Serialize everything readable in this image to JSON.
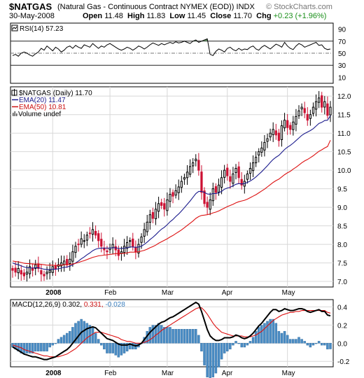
{
  "header": {
    "symbol": "$NATGAS",
    "name": "(Natural Gas - Continuous Contract NYMEX (EOD)) INDX",
    "date": "30-May-2008",
    "open_label": "Open",
    "open": "11.48",
    "high_label": "High",
    "high": "11.83",
    "low_label": "Low",
    "low": "11.45",
    "close_label": "Close",
    "close": "11.70",
    "chg_label": "Chg",
    "chg": "+0.23 (+1.96%)",
    "watermark": "© StockCharts.com"
  },
  "chart_data": [
    {
      "type": "line",
      "panel": "rsi",
      "legend": "RSI(14) 57.23",
      "y_ticks": [
        10,
        30,
        50,
        70,
        90
      ],
      "reference_lines": [
        30,
        50,
        70
      ],
      "ylim": [
        0,
        100
      ],
      "overbought_fill_color": "#5d8a5d",
      "series": [
        {
          "values": [
            46,
            48,
            45,
            50,
            52,
            50,
            47,
            45,
            49,
            52,
            58,
            55,
            62,
            58,
            54,
            60,
            57,
            52,
            55,
            60,
            62,
            58,
            63,
            60,
            58,
            64,
            62,
            60,
            66,
            62,
            58,
            62,
            60,
            64,
            66,
            63,
            60,
            57,
            55,
            57,
            60,
            58,
            55,
            58,
            62,
            60,
            57,
            60,
            64,
            67,
            65,
            63,
            66,
            64,
            66,
            68,
            66,
            69,
            67,
            68,
            70,
            68,
            66,
            70,
            72,
            68,
            70,
            72,
            74,
            48,
            46,
            53,
            57,
            55,
            52,
            58,
            60,
            56,
            54,
            58,
            55,
            57,
            56,
            60,
            62,
            57,
            55,
            60,
            63,
            60,
            57,
            61,
            65,
            63,
            60,
            68,
            62,
            58,
            56,
            62,
            66,
            64,
            60,
            62,
            64,
            66,
            68,
            63,
            64,
            58,
            56,
            57
          ]
        }
      ]
    },
    {
      "type": "candlestick",
      "panel": "price",
      "legend": [
        "$NATGAS (Daily) 11.70",
        "EMA(20) 11.47",
        "EMA(50) 10.81",
        "Volume undef"
      ],
      "y_ticks": [
        7.0,
        7.5,
        8.0,
        8.5,
        9.0,
        9.5,
        10.0,
        10.5,
        11.0,
        11.5,
        12.0
      ],
      "ylim": [
        6.85,
        12.25
      ],
      "x_labels": [
        "2008",
        "Feb",
        "Mar",
        "Apr",
        "May"
      ],
      "up_color": "#000000",
      "down_color": "#cc1133",
      "series": [
        {
          "name": "close",
          "values": [
            7.3,
            7.25,
            7.35,
            7.2,
            7.15,
            7.25,
            7.4,
            7.3,
            7.45,
            7.35,
            7.2,
            7.15,
            7.25,
            7.3,
            7.4,
            7.35,
            7.45,
            7.5,
            7.55,
            7.45,
            7.6,
            7.8,
            7.95,
            8.0,
            8.15,
            8.1,
            8.25,
            8.3,
            8.4,
            8.25,
            8.1,
            7.95,
            7.85,
            7.8,
            7.9,
            8.0,
            7.85,
            7.7,
            7.8,
            7.95,
            8.05,
            8.1,
            7.95,
            7.8,
            8.0,
            8.2,
            8.4,
            8.6,
            8.8,
            8.7,
            8.95,
            9.1,
            9.05,
            8.95,
            9.2,
            9.35,
            9.3,
            9.45,
            9.55,
            9.7,
            9.8,
            9.95,
            10.1,
            10.2,
            10.3,
            10.0,
            9.4,
            9.1,
            9.0,
            9.2,
            9.5,
            9.4,
            9.6,
            9.8,
            10.0,
            9.85,
            9.7,
            9.9,
            10.05,
            9.8,
            9.6,
            9.7,
            9.9,
            10.05,
            10.2,
            10.35,
            10.5,
            10.6,
            10.75,
            10.85,
            11.0,
            11.1,
            10.95,
            10.8,
            11.2,
            11.35,
            11.15,
            11.1,
            11.3,
            11.45,
            11.6,
            11.7,
            11.55,
            11.35,
            11.5,
            11.7,
            11.85,
            11.95,
            11.7,
            11.85,
            11.48,
            11.7
          ]
        },
        {
          "name": "EMA(20)",
          "values": [
            7.5,
            7.47,
            7.45,
            7.42,
            7.39,
            7.37,
            7.37,
            7.36,
            7.37,
            7.37,
            7.35,
            7.33,
            7.32,
            7.32,
            7.33,
            7.33,
            7.34,
            7.36,
            7.38,
            7.39,
            7.41,
            7.45,
            7.5,
            7.55,
            7.61,
            7.66,
            7.72,
            7.77,
            7.83,
            7.87,
            7.89,
            7.9,
            7.9,
            7.9,
            7.9,
            7.91,
            7.91,
            7.89,
            7.89,
            7.9,
            7.91,
            7.93,
            7.93,
            7.92,
            7.93,
            7.95,
            8.0,
            8.06,
            8.13,
            8.19,
            8.26,
            8.34,
            8.41,
            8.46,
            8.53,
            8.61,
            8.67,
            8.75,
            8.82,
            8.9,
            8.99,
            9.08,
            9.17,
            9.27,
            9.37,
            9.43,
            9.43,
            9.4,
            9.36,
            9.35,
            9.37,
            9.37,
            9.39,
            9.43,
            9.49,
            9.52,
            9.54,
            9.58,
            9.62,
            9.64,
            9.63,
            9.64,
            9.67,
            9.71,
            9.76,
            9.82,
            9.89,
            9.96,
            10.04,
            10.12,
            10.21,
            10.29,
            10.35,
            10.4,
            10.48,
            10.56,
            10.62,
            10.67,
            10.73,
            10.8,
            10.87,
            10.94,
            10.99,
            11.03,
            11.07,
            11.12,
            11.19,
            11.26,
            11.29,
            11.34,
            11.35,
            11.47
          ]
        },
        {
          "name": "EMA(50)",
          "values": [
            7.55,
            7.54,
            7.53,
            7.51,
            7.49,
            7.48,
            7.48,
            7.47,
            7.47,
            7.47,
            7.46,
            7.45,
            7.44,
            7.44,
            7.44,
            7.43,
            7.44,
            7.44,
            7.45,
            7.45,
            7.46,
            7.47,
            7.49,
            7.51,
            7.54,
            7.56,
            7.59,
            7.62,
            7.65,
            7.67,
            7.69,
            7.7,
            7.71,
            7.72,
            7.73,
            7.74,
            7.75,
            7.75,
            7.75,
            7.76,
            7.77,
            7.79,
            7.79,
            7.79,
            7.8,
            7.82,
            7.84,
            7.87,
            7.91,
            7.94,
            7.98,
            8.03,
            8.07,
            8.11,
            8.15,
            8.2,
            8.24,
            8.29,
            8.34,
            8.39,
            8.45,
            8.51,
            8.57,
            8.63,
            8.7,
            8.75,
            8.78,
            8.79,
            8.8,
            8.82,
            8.85,
            8.87,
            8.9,
            8.94,
            8.98,
            9.02,
            9.05,
            9.08,
            9.12,
            9.15,
            9.17,
            9.19,
            9.22,
            9.26,
            9.3,
            9.34,
            9.39,
            9.44,
            9.49,
            9.55,
            9.61,
            9.67,
            9.72,
            9.76,
            9.82,
            9.88,
            9.93,
            9.97,
            10.03,
            10.08,
            10.14,
            10.2,
            10.25,
            10.29,
            10.34,
            10.39,
            10.45,
            10.51,
            10.55,
            10.6,
            10.64,
            10.81
          ]
        }
      ]
    },
    {
      "type": "line",
      "panel": "macd",
      "legend_label": "MACD(12,26,9)",
      "legend_macd": "0.302,",
      "legend_signal": "0.331,",
      "legend_hist": "-0.028",
      "y_ticks": [
        -0.2,
        0.0,
        0.2,
        0.4
      ],
      "ylim": [
        -0.26,
        0.48
      ],
      "x_labels": [
        "2008",
        "Feb",
        "Mar",
        "Apr",
        "May"
      ],
      "series": [
        {
          "name": "MACD",
          "values": [
            -0.04,
            -0.06,
            -0.08,
            -0.1,
            -0.12,
            -0.13,
            -0.14,
            -0.15,
            -0.15,
            -0.16,
            -0.17,
            -0.18,
            -0.18,
            -0.17,
            -0.16,
            -0.15,
            -0.13,
            -0.11,
            -0.09,
            -0.07,
            -0.04,
            0.0,
            0.04,
            0.08,
            0.12,
            0.14,
            0.16,
            0.17,
            0.18,
            0.17,
            0.14,
            0.11,
            0.08,
            0.05,
            0.04,
            0.03,
            0.01,
            -0.01,
            -0.02,
            -0.02,
            -0.02,
            -0.01,
            -0.02,
            -0.03,
            -0.02,
            0.0,
            0.04,
            0.08,
            0.12,
            0.15,
            0.18,
            0.21,
            0.23,
            0.24,
            0.26,
            0.28,
            0.29,
            0.31,
            0.33,
            0.35,
            0.37,
            0.39,
            0.41,
            0.43,
            0.45,
            0.43,
            0.35,
            0.25,
            0.15,
            0.08,
            0.05,
            0.03,
            0.03,
            0.04,
            0.06,
            0.06,
            0.06,
            0.07,
            0.09,
            0.08,
            0.06,
            0.05,
            0.06,
            0.08,
            0.11,
            0.15,
            0.19,
            0.22,
            0.26,
            0.3,
            0.34,
            0.37,
            0.37,
            0.35,
            0.36,
            0.38,
            0.37,
            0.36,
            0.36,
            0.37,
            0.38,
            0.38,
            0.37,
            0.35,
            0.34,
            0.35,
            0.36,
            0.37,
            0.35,
            0.35,
            0.31,
            0.302
          ]
        },
        {
          "name": "Signal",
          "values": [
            -0.02,
            -0.03,
            -0.04,
            -0.05,
            -0.07,
            -0.08,
            -0.09,
            -0.1,
            -0.11,
            -0.12,
            -0.13,
            -0.14,
            -0.14,
            -0.15,
            -0.15,
            -0.15,
            -0.15,
            -0.14,
            -0.13,
            -0.12,
            -0.1,
            -0.08,
            -0.06,
            -0.03,
            0.0,
            0.03,
            0.06,
            0.08,
            0.1,
            0.12,
            0.12,
            0.12,
            0.11,
            0.1,
            0.09,
            0.08,
            0.07,
            0.06,
            0.04,
            0.03,
            0.02,
            0.02,
            0.01,
            0.0,
            0.0,
            0.0,
            0.01,
            0.02,
            0.04,
            0.06,
            0.09,
            0.11,
            0.14,
            0.16,
            0.18,
            0.2,
            0.22,
            0.24,
            0.26,
            0.28,
            0.3,
            0.32,
            0.34,
            0.36,
            0.38,
            0.39,
            0.39,
            0.36,
            0.32,
            0.27,
            0.22,
            0.18,
            0.15,
            0.12,
            0.11,
            0.1,
            0.09,
            0.08,
            0.08,
            0.08,
            0.08,
            0.07,
            0.07,
            0.07,
            0.08,
            0.09,
            0.11,
            0.13,
            0.16,
            0.19,
            0.22,
            0.25,
            0.27,
            0.29,
            0.31,
            0.32,
            0.33,
            0.34,
            0.34,
            0.35,
            0.35,
            0.36,
            0.36,
            0.36,
            0.36,
            0.36,
            0.36,
            0.36,
            0.36,
            0.36,
            0.34,
            0.331
          ]
        }
      ]
    }
  ]
}
